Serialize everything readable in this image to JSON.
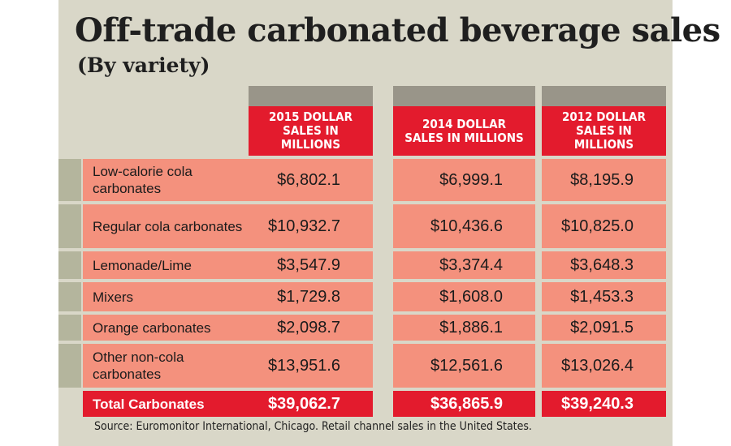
{
  "chart_data": {
    "type": "table",
    "title": "Off-trade carbonated beverage sales",
    "subtitle": "(By variety)",
    "columns": [
      "2015 DOLLAR SALES IN MILLIONS",
      "2014 DOLLAR SALES IN MILLIONS",
      "2012 DOLLAR SALES IN MILLIONS"
    ],
    "rows": [
      {
        "label": "Low-calorie cola carbonates",
        "values": [
          "$6,802.1",
          "$6,999.1",
          "$8,195.9"
        ]
      },
      {
        "label": "Regular cola carbonates",
        "values": [
          "$10,932.7",
          "$10,436.6",
          "$10,825.0"
        ]
      },
      {
        "label": "Lemonade/Lime",
        "values": [
          "$3,547.9",
          "$3,374.4",
          "$3,648.3"
        ]
      },
      {
        "label": "Mixers",
        "values": [
          "$1,729.8",
          "$1,608.0",
          "$1,453.3"
        ]
      },
      {
        "label": "Orange carbonates",
        "values": [
          "$2,098.7",
          "$1,886.1",
          "$2,091.5"
        ]
      },
      {
        "label": "Other non-cola carbonates",
        "values": [
          "$13,951.6",
          "$12,561.6",
          "$13,026.4"
        ]
      }
    ],
    "total": {
      "label": "Total Carbonates",
      "values": [
        "$39,062.7",
        "$36,865.9",
        "$39,240.3"
      ]
    },
    "source": "Source: Euromonitor International, Chicago. Retail channel sales in the United States."
  },
  "colors": {
    "panel": "#d9d7c8",
    "header_red": "#e31b2d",
    "header_cap": "#999589",
    "row_salmon": "#f4917d",
    "row_tab": "#b4b59d"
  }
}
